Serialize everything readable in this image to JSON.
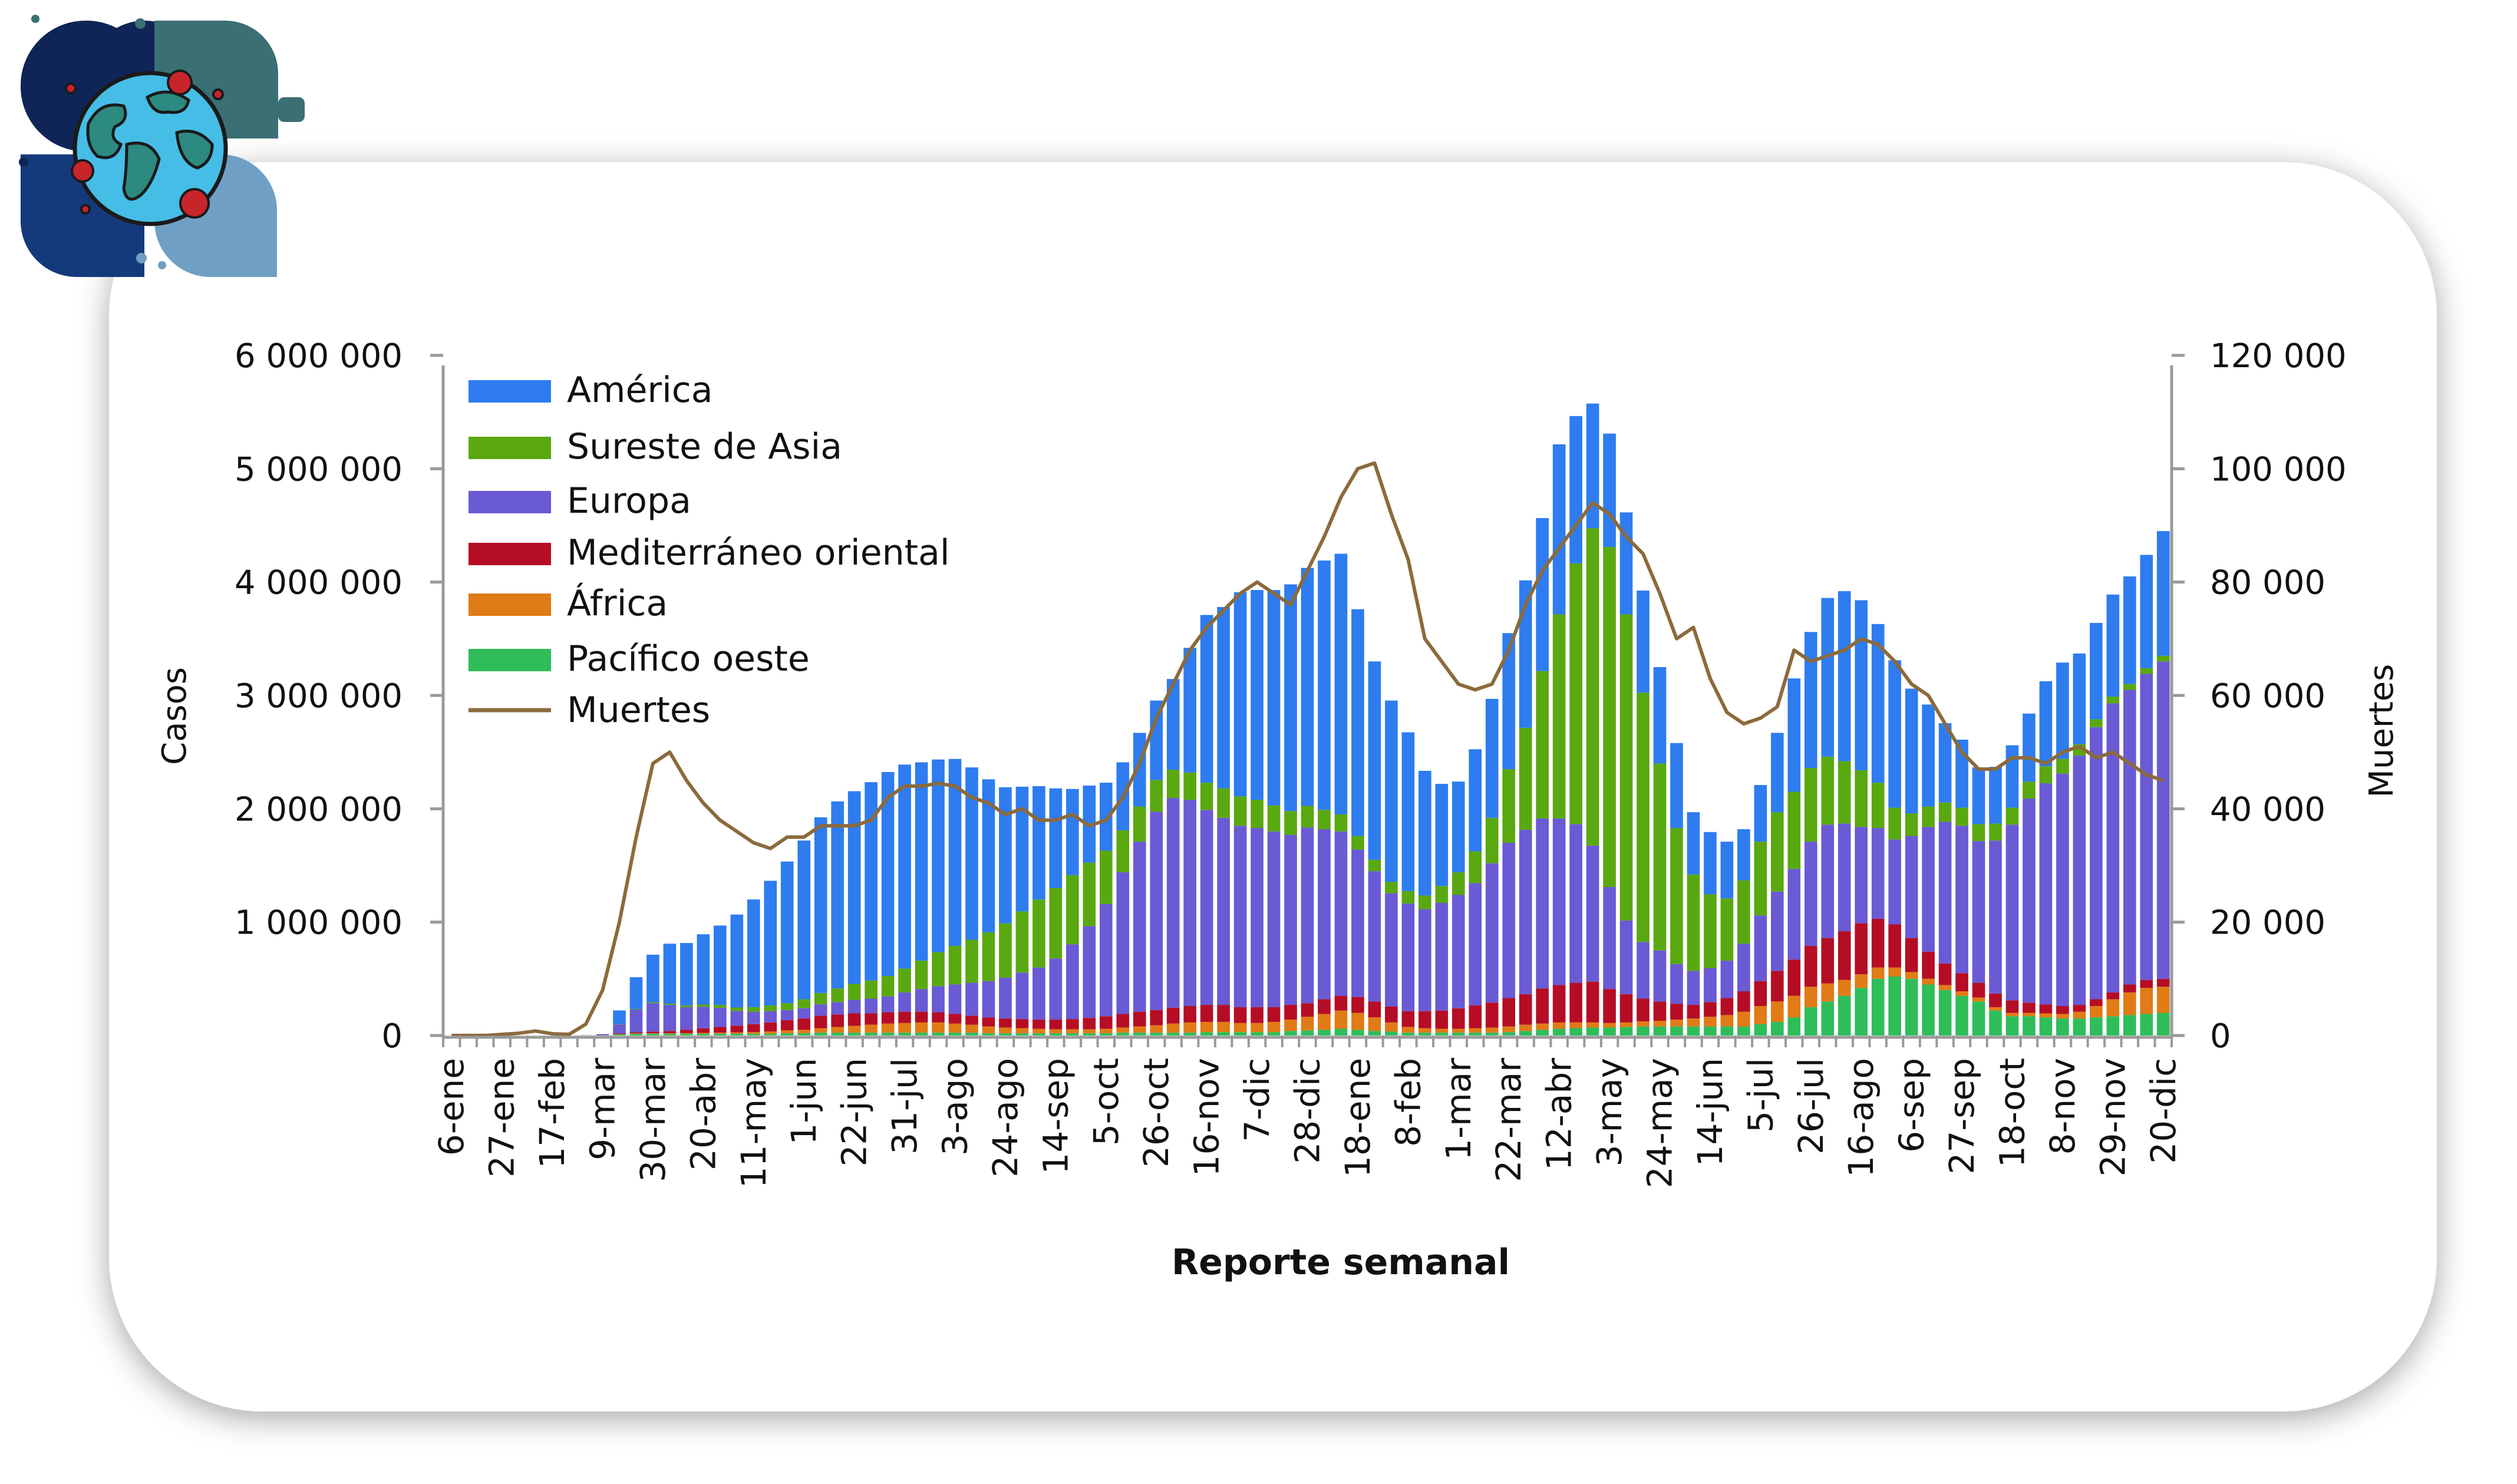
{
  "chart_data": {
    "type": "bar",
    "stacked": true,
    "xlabel": "Reporte semanal",
    "ylabel": "Casos",
    "y2label": "Muertes",
    "ylim": [
      0,
      6000000
    ],
    "y2lim": [
      0,
      120000
    ],
    "yticks": [
      0,
      1000000,
      2000000,
      3000000,
      4000000,
      5000000,
      6000000
    ],
    "ytick_labels": [
      "0",
      "1 000 000",
      "2 000 000",
      "3 000 000",
      "4 000 000",
      "5 000 000",
      "6 000 000"
    ],
    "y2ticks": [
      0,
      20000,
      40000,
      60000,
      80000,
      100000,
      120000
    ],
    "y2tick_labels": [
      "0",
      "20 000",
      "40 000",
      "60 000",
      "80 000",
      "100 000",
      "120 000"
    ],
    "legend_position": "top-left",
    "grid": false,
    "x_labels": [
      {
        "index": 0,
        "label": "6-ene"
      },
      {
        "index": 3,
        "label": "27-ene"
      },
      {
        "index": 6,
        "label": "17-feb"
      },
      {
        "index": 9,
        "label": "9-mar"
      },
      {
        "index": 12,
        "label": "30-mar"
      },
      {
        "index": 15,
        "label": "20-abr"
      },
      {
        "index": 18,
        "label": "11-may"
      },
      {
        "index": 21,
        "label": "1-jun"
      },
      {
        "index": 24,
        "label": "22-jun"
      },
      {
        "index": 27,
        "label": "31-jul"
      },
      {
        "index": 30,
        "label": "3-ago"
      },
      {
        "index": 33,
        "label": "24-ago"
      },
      {
        "index": 36,
        "label": "14-sep"
      },
      {
        "index": 39,
        "label": "5-oct"
      },
      {
        "index": 42,
        "label": "26-oct"
      },
      {
        "index": 45,
        "label": "16-nov"
      },
      {
        "index": 48,
        "label": "7-dic"
      },
      {
        "index": 51,
        "label": "28-dic"
      },
      {
        "index": 54,
        "label": "18-ene"
      },
      {
        "index": 57,
        "label": "8-feb"
      },
      {
        "index": 60,
        "label": "1-mar"
      },
      {
        "index": 63,
        "label": "22-mar"
      },
      {
        "index": 66,
        "label": "12-abr"
      },
      {
        "index": 69,
        "label": "3-may"
      },
      {
        "index": 72,
        "label": "24-may"
      },
      {
        "index": 75,
        "label": "14-jun"
      },
      {
        "index": 78,
        "label": "5-jul"
      },
      {
        "index": 81,
        "label": "26-jul"
      },
      {
        "index": 84,
        "label": "16-ago"
      },
      {
        "index": 87,
        "label": "6-sep"
      },
      {
        "index": 90,
        "label": "27-sep"
      },
      {
        "index": 93,
        "label": "18-oct"
      },
      {
        "index": 96,
        "label": "8-nov"
      },
      {
        "index": 99,
        "label": "29-nov"
      },
      {
        "index": 102,
        "label": "20-dic"
      }
    ],
    "series": [
      {
        "name": "Pacífico oeste",
        "color": "#2ebd59",
        "kind": "bar",
        "values": [
          0,
          0,
          0,
          0,
          0,
          0,
          0,
          0,
          0,
          0,
          10000,
          15000,
          15000,
          15000,
          15000,
          15000,
          15000,
          15000,
          15000,
          15000,
          20000,
          20000,
          25000,
          25000,
          25000,
          25000,
          25000,
          25000,
          25000,
          25000,
          25000,
          25000,
          20000,
          20000,
          20000,
          20000,
          20000,
          20000,
          20000,
          20000,
          25000,
          25000,
          25000,
          25000,
          25000,
          30000,
          30000,
          30000,
          30000,
          30000,
          40000,
          45000,
          50000,
          60000,
          50000,
          40000,
          35000,
          25000,
          25000,
          25000,
          25000,
          25000,
          25000,
          30000,
          40000,
          50000,
          60000,
          65000,
          70000,
          70000,
          75000,
          80000,
          80000,
          80000,
          80000,
          80000,
          80000,
          80000,
          100000,
          120000,
          160000,
          250000,
          300000,
          350000,
          420000,
          500000,
          520000,
          500000,
          450000,
          400000,
          350000,
          300000,
          220000,
          170000,
          170000,
          160000,
          150000,
          150000,
          160000,
          170000,
          180000,
          190000,
          200000
        ]
      },
      {
        "name": "África",
        "color": "#e07b16",
        "kind": "bar",
        "values": [
          0,
          0,
          0,
          0,
          0,
          0,
          0,
          0,
          0,
          0,
          3000,
          4000,
          5000,
          5000,
          6000,
          8000,
          10000,
          12000,
          15000,
          20000,
          25000,
          30000,
          40000,
          50000,
          60000,
          70000,
          80000,
          85000,
          90000,
          90000,
          80000,
          70000,
          60000,
          50000,
          45000,
          40000,
          35000,
          35000,
          35000,
          40000,
          45000,
          55000,
          65000,
          80000,
          90000,
          90000,
          90000,
          80000,
          80000,
          90000,
          100000,
          120000,
          140000,
          160000,
          150000,
          120000,
          80000,
          50000,
          40000,
          35000,
          35000,
          40000,
          45000,
          50000,
          55000,
          55000,
          55000,
          50000,
          45000,
          40000,
          40000,
          45000,
          50000,
          60000,
          70000,
          85000,
          100000,
          130000,
          160000,
          180000,
          190000,
          180000,
          160000,
          140000,
          120000,
          100000,
          80000,
          60000,
          50000,
          45000,
          40000,
          35000,
          30000,
          30000,
          30000,
          35000,
          40000,
          60000,
          100000,
          150000,
          200000,
          230000,
          230000
        ]
      },
      {
        "name": "Mediterráneo oriental",
        "color": "#b50d25",
        "kind": "bar",
        "values": [
          0,
          0,
          0,
          0,
          0,
          0,
          0,
          0,
          1000,
          2000,
          5000,
          10000,
          15000,
          20000,
          30000,
          40000,
          50000,
          60000,
          70000,
          80000,
          90000,
          100000,
          110000,
          110000,
          110000,
          100000,
          100000,
          100000,
          95000,
          90000,
          85000,
          80000,
          80000,
          80000,
          80000,
          80000,
          85000,
          90000,
          100000,
          110000,
          120000,
          130000,
          135000,
          140000,
          145000,
          150000,
          150000,
          140000,
          140000,
          130000,
          130000,
          120000,
          130000,
          130000,
          140000,
          140000,
          140000,
          140000,
          150000,
          160000,
          180000,
          200000,
          220000,
          250000,
          270000,
          310000,
          330000,
          350000,
          360000,
          300000,
          250000,
          200000,
          170000,
          140000,
          120000,
          130000,
          150000,
          180000,
          220000,
          270000,
          320000,
          360000,
          400000,
          430000,
          450000,
          430000,
          380000,
          300000,
          240000,
          190000,
          160000,
          130000,
          120000,
          110000,
          90000,
          80000,
          70000,
          60000,
          60000,
          60000,
          70000,
          70000,
          70000
        ]
      },
      {
        "name": "Europa",
        "color": "#6a5ad4",
        "kind": "bar",
        "values": [
          0,
          0,
          0,
          0,
          0,
          0,
          0,
          0,
          2000,
          10000,
          80000,
          200000,
          250000,
          230000,
          200000,
          190000,
          170000,
          130000,
          110000,
          100000,
          90000,
          90000,
          100000,
          110000,
          120000,
          130000,
          140000,
          170000,
          200000,
          230000,
          260000,
          290000,
          320000,
          360000,
          410000,
          460000,
          540000,
          660000,
          810000,
          990000,
          1250000,
          1500000,
          1750000,
          1850000,
          1820000,
          1720000,
          1650000,
          1600000,
          1580000,
          1550000,
          1500000,
          1550000,
          1500000,
          1450000,
          1300000,
          1150000,
          1000000,
          950000,
          900000,
          950000,
          1000000,
          1080000,
          1230000,
          1370000,
          1450000,
          1500000,
          1470000,
          1400000,
          1200000,
          900000,
          650000,
          500000,
          450000,
          350000,
          300000,
          300000,
          330000,
          420000,
          580000,
          700000,
          800000,
          920000,
          1000000,
          950000,
          850000,
          800000,
          750000,
          900000,
          1100000,
          1250000,
          1300000,
          1250000,
          1350000,
          1550000,
          1800000,
          1950000,
          2050000,
          2200000,
          2400000,
          2550000,
          2600000,
          2700000,
          2800000
        ]
      },
      {
        "name": "Sureste de Asia",
        "color": "#5aa810",
        "kind": "bar",
        "values": [
          0,
          0,
          0,
          0,
          0,
          0,
          0,
          0,
          0,
          0,
          3000,
          5000,
          8000,
          10000,
          15000,
          20000,
          25000,
          30000,
          40000,
          50000,
          60000,
          80000,
          100000,
          120000,
          140000,
          160000,
          180000,
          210000,
          250000,
          300000,
          340000,
          380000,
          430000,
          480000,
          540000,
          600000,
          620000,
          610000,
          560000,
          470000,
          370000,
          310000,
          280000,
          250000,
          240000,
          240000,
          260000,
          260000,
          250000,
          230000,
          210000,
          190000,
          170000,
          150000,
          120000,
          100000,
          100000,
          110000,
          120000,
          150000,
          200000,
          280000,
          400000,
          650000,
          900000,
          1300000,
          1800000,
          2300000,
          2800000,
          3000000,
          2700000,
          2200000,
          1650000,
          1200000,
          850000,
          650000,
          550000,
          560000,
          650000,
          700000,
          680000,
          650000,
          600000,
          550000,
          500000,
          400000,
          280000,
          200000,
          180000,
          170000,
          160000,
          150000,
          150000,
          150000,
          150000,
          150000,
          130000,
          100000,
          70000,
          60000,
          50000,
          50000,
          50000
        ]
      },
      {
        "name": "América",
        "color": "#2e7cf0",
        "kind": "bar",
        "values": [
          0,
          0,
          0,
          0,
          0,
          0,
          0,
          0,
          0,
          0,
          120000,
          280000,
          420000,
          530000,
          550000,
          620000,
          700000,
          820000,
          950000,
          1100000,
          1250000,
          1400000,
          1550000,
          1650000,
          1700000,
          1750000,
          1800000,
          1800000,
          1750000,
          1700000,
          1650000,
          1520000,
          1350000,
          1200000,
          1100000,
          1000000,
          880000,
          760000,
          680000,
          600000,
          600000,
          650000,
          700000,
          800000,
          1100000,
          1480000,
          1600000,
          1800000,
          1850000,
          1900000,
          2000000,
          2100000,
          2200000,
          2300000,
          2000000,
          1750000,
          1600000,
          1400000,
          1100000,
          900000,
          800000,
          900000,
          1050000,
          1200000,
          1300000,
          1350000,
          1500000,
          1300000,
          1100000,
          1000000,
          900000,
          900000,
          850000,
          750000,
          550000,
          550000,
          500000,
          450000,
          500000,
          700000,
          1000000,
          1200000,
          1400000,
          1500000,
          1500000,
          1400000,
          1300000,
          1100000,
          900000,
          700000,
          600000,
          500000,
          500000,
          550000,
          600000,
          750000,
          850000,
          800000,
          850000,
          900000,
          950000,
          1000000,
          1100000
        ]
      },
      {
        "name": "Muertes",
        "color": "#8b6a3c",
        "kind": "line",
        "axis": "y2",
        "values": [
          0,
          0,
          0,
          200,
          400,
          800,
          300,
          200,
          2000,
          8000,
          20000,
          35000,
          48000,
          50000,
          45000,
          41000,
          38000,
          36000,
          34000,
          33000,
          35000,
          35000,
          37000,
          37000,
          37000,
          38000,
          42000,
          44000,
          44000,
          44500,
          44000,
          42000,
          41000,
          39000,
          40000,
          38000,
          38000,
          39000,
          37000,
          38000,
          42000,
          48000,
          56000,
          62000,
          68000,
          72000,
          75000,
          78000,
          80000,
          78000,
          76000,
          82000,
          88000,
          95000,
          100000,
          101000,
          92000,
          84000,
          70000,
          66000,
          62000,
          61000,
          62000,
          68000,
          76000,
          82000,
          86000,
          90000,
          94000,
          92000,
          88000,
          85000,
          78000,
          70000,
          72000,
          63000,
          57000,
          55000,
          56000,
          58000,
          68000,
          66000,
          67000,
          68000,
          70000,
          69000,
          66000,
          62000,
          60000,
          55000,
          50000,
          47000,
          47000,
          49000,
          49000,
          48000,
          50000,
          51000,
          49000,
          50000,
          48000,
          46000,
          45000
        ]
      }
    ]
  },
  "logo": {
    "icon": "globe-virus-icon"
  }
}
